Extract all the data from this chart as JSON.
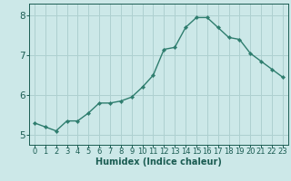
{
  "x": [
    0,
    1,
    2,
    3,
    4,
    5,
    6,
    7,
    8,
    9,
    10,
    11,
    12,
    13,
    14,
    15,
    16,
    17,
    18,
    19,
    20,
    21,
    22,
    23
  ],
  "y": [
    5.3,
    5.2,
    5.1,
    5.35,
    5.35,
    5.55,
    5.8,
    5.8,
    5.85,
    5.95,
    6.2,
    6.5,
    7.15,
    7.2,
    7.7,
    7.95,
    7.95,
    7.7,
    7.45,
    7.4,
    7.05,
    6.85,
    6.65,
    6.45
  ],
  "line_color": "#2e7d6e",
  "marker": "D",
  "marker_size": 2.2,
  "bg_color": "#cce8e8",
  "grid_color": "#aed0d0",
  "xlabel": "Humidex (Indice chaleur)",
  "xlabel_color": "#1a5c52",
  "tick_color": "#1a5c52",
  "xlim": [
    -0.5,
    23.5
  ],
  "ylim": [
    4.75,
    8.3
  ],
  "yticks": [
    5,
    6,
    7,
    8
  ],
  "xticks": [
    0,
    1,
    2,
    3,
    4,
    5,
    6,
    7,
    8,
    9,
    10,
    11,
    12,
    13,
    14,
    15,
    16,
    17,
    18,
    19,
    20,
    21,
    22,
    23
  ],
  "line_width": 1.0,
  "tick_fontsize": 6.0,
  "xlabel_fontsize": 7.0,
  "ytick_fontsize": 7.5
}
